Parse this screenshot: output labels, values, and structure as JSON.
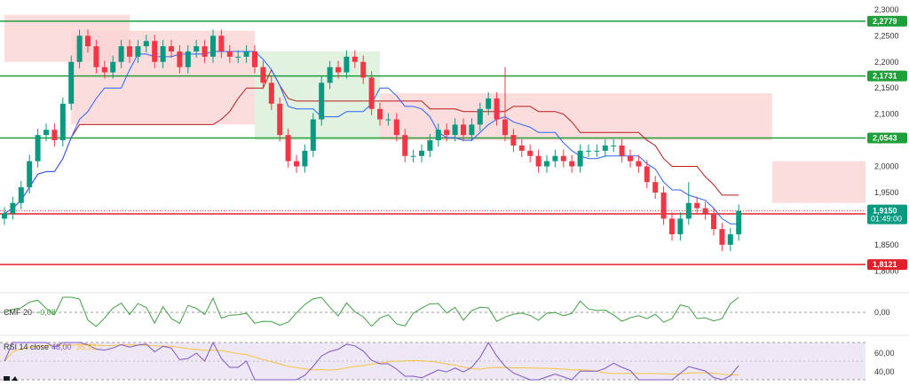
{
  "colors": {
    "up": "#089981",
    "down": "#f23645",
    "level_green": "#1f9e3a",
    "level_red": "#e0202a",
    "tenkan": "#2962ff",
    "kijun": "#b71c1c",
    "cloud_bear": "#fbd5d5",
    "cloud_bull": "#d9efd8",
    "cmf": "#43a047",
    "rsi": "#7e57c2",
    "rsi_ma": "#f5c342",
    "rsi_band": "#ede7f6"
  },
  "chart_data": {
    "type": "candlestick",
    "y_range": [
      1.775,
      2.31
    ],
    "price_axis_ticks": [
      "2,3000",
      "2,2500",
      "2,2000",
      "2,1500",
      "2,1000",
      "2,0500",
      "2,0000",
      "1,9500",
      "1,9000",
      "1,8500",
      "1,8000"
    ],
    "levels": [
      {
        "value": 2.2779,
        "label": "2,2779",
        "color": "green"
      },
      {
        "value": 2.1731,
        "label": "2,1731",
        "color": "green"
      },
      {
        "value": 2.0543,
        "label": "2,0543",
        "color": "green"
      },
      {
        "value": 1.9092,
        "label": "1,9092",
        "color": "red"
      },
      {
        "value": 1.8121,
        "label": "1,8121",
        "color": "red"
      }
    ],
    "last_price": {
      "value": 1.915,
      "label": "1,9150",
      "countdown": "01:49:00"
    },
    "closes": [
      1.91,
      1.93,
      1.96,
      2.01,
      2.06,
      2.07,
      2.05,
      2.12,
      2.2,
      2.25,
      2.23,
      2.19,
      2.18,
      2.2,
      2.23,
      2.21,
      2.23,
      2.24,
      2.2,
      2.23,
      2.22,
      2.19,
      2.22,
      2.23,
      2.21,
      2.25,
      2.22,
      2.21,
      2.21,
      2.22,
      2.19,
      2.16,
      2.12,
      2.06,
      2.01,
      2.0,
      2.03,
      2.09,
      2.16,
      2.19,
      2.18,
      2.21,
      2.2,
      2.17,
      2.11,
      2.09,
      2.09,
      2.06,
      2.02,
      2.02,
      2.03,
      2.05,
      2.07,
      2.06,
      2.08,
      2.06,
      2.08,
      2.11,
      2.13,
      2.09,
      2.06,
      2.04,
      2.03,
      2.02,
      2.0,
      2.01,
      2.02,
      2.01,
      2.0,
      2.03,
      2.03,
      2.03,
      2.04,
      2.04,
      2.02,
      2.01,
      2.0,
      1.97,
      1.95,
      1.9,
      1.87,
      1.9,
      1.93,
      1.92,
      1.91,
      1.88,
      1.85,
      1.87,
      1.915
    ],
    "highs_extra": {
      "60": 2.19,
      "82": 1.97
    },
    "ichimoku_cloud": [
      {
        "x0": 0,
        "x1": 15,
        "top": 2.29,
        "bottom": 2.2,
        "kind": "bear"
      },
      {
        "x0": 8,
        "x1": 30,
        "top": 2.26,
        "bottom": 2.08,
        "kind": "bear"
      },
      {
        "x0": 30,
        "x1": 45,
        "top": 2.22,
        "bottom": 2.05,
        "kind": "bull"
      },
      {
        "x0": 45,
        "x1": 92,
        "top": 2.14,
        "bottom": 2.05,
        "kind": "bear"
      },
      {
        "x0": 92,
        "x1": 110,
        "top": 2.01,
        "bottom": 1.93,
        "kind": "bear"
      }
    ],
    "indicators": {
      "cmf": {
        "label": "CMF 20",
        "value": "−0,08",
        "axis_tick": "0,00"
      },
      "rsi": {
        "label": "RSI 14 close",
        "value": "48,00",
        "ma_value": "36,92",
        "axis_ticks": [
          "60,00",
          "40,00"
        ]
      }
    }
  }
}
